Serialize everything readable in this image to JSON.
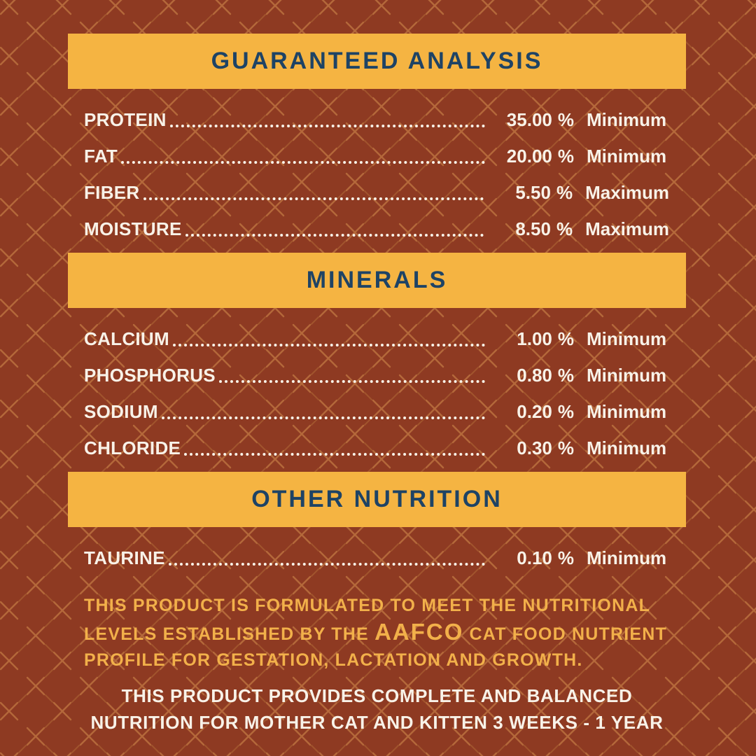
{
  "colors": {
    "background": "#8E3A22",
    "pattern_x": "#C47C44",
    "pattern_dash": "#B06A36",
    "bar": "#F5B442",
    "bar_text": "#1E4365",
    "row_text": "#F8F2E8",
    "accent_text": "#F2B04A"
  },
  "sections": [
    {
      "title": "GUARANTEED ANALYSIS",
      "rows": [
        {
          "label": "PROTEIN",
          "value": "35.00",
          "unit": "%",
          "qualifier": "Minimum"
        },
        {
          "label": "FAT",
          "value": "20.00",
          "unit": "%",
          "qualifier": "Minimum"
        },
        {
          "label": "FIBER",
          "value": "5.50",
          "unit": "%",
          "qualifier": "Maximum"
        },
        {
          "label": "MOISTURE",
          "value": "8.50",
          "unit": "%",
          "qualifier": "Maximum"
        }
      ]
    },
    {
      "title": "MINERALS",
      "rows": [
        {
          "label": "CALCIUM",
          "value": "1.00",
          "unit": "%",
          "qualifier": "Minimum"
        },
        {
          "label": "PHOSPHORUS",
          "value": "0.80",
          "unit": "%",
          "qualifier": "Minimum"
        },
        {
          "label": "SODIUM",
          "value": "0.20",
          "unit": "%",
          "qualifier": "Minimum"
        },
        {
          "label": "CHLORIDE",
          "value": "0.30",
          "unit": "%",
          "qualifier": "Minimum"
        }
      ]
    },
    {
      "title": "OTHER NUTRITION",
      "rows": [
        {
          "label": "TAURINE",
          "value": "0.10",
          "unit": "%",
          "qualifier": "Minimum"
        }
      ]
    }
  ],
  "aafco_statement": {
    "lines": [
      [
        {
          "t": "THIS PRODUCT IS FORMULATED TO MEET THE NUTRITIONAL",
          "big": false
        }
      ],
      [
        {
          "t": "LEVELS ESTABLISHED BY THE ",
          "big": false
        },
        {
          "t": "AAFCO",
          "big": true
        },
        {
          "t": " CAT FOOD NUTRIENT",
          "big": false
        }
      ],
      [
        {
          "t": "PROFILE FOR GESTATION, LACTATION AND GROWTH.",
          "big": false
        }
      ]
    ]
  },
  "balanced_statement": {
    "lines": [
      "THIS PRODUCT PROVIDES COMPLETE AND BALANCED",
      "NUTRITION FOR MOTHER CAT AND KITTEN 3 WEEKS - 1 YEAR"
    ]
  }
}
